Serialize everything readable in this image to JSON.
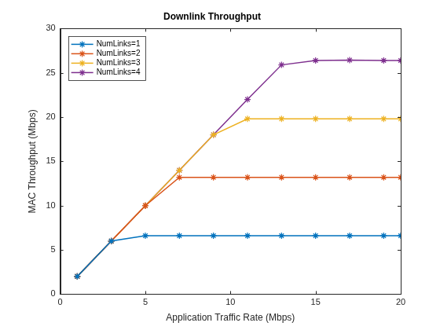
{
  "chart_data": {
    "type": "line",
    "title": "Downlink Throughput",
    "x_label": "Application Traffic Rate (Mbps)",
    "y_label": "MAC Throughput (Mbps)",
    "x": [
      1,
      3,
      5,
      7,
      9,
      11,
      13,
      15,
      17,
      19,
      20
    ],
    "series": [
      {
        "name": "NumLinks=1",
        "color": "#0072bd",
        "marker": "star",
        "line_style": "solid",
        "values": [
          2,
          6,
          6.6,
          6.6,
          6.6,
          6.6,
          6.6,
          6.6,
          6.6,
          6.6,
          6.6
        ]
      },
      {
        "name": "NumLinks=2",
        "color": "#d95319",
        "marker": "star",
        "line_style": "solid",
        "values": [
          2,
          6,
          10,
          13.2,
          13.2,
          13.2,
          13.2,
          13.2,
          13.2,
          13.2,
          13.2
        ]
      },
      {
        "name": "NumLinks=3",
        "color": "#edb120",
        "marker": "star",
        "line_style": "solid",
        "values": [
          2,
          6,
          10,
          14,
          18,
          19.8,
          19.8,
          19.8,
          19.8,
          19.8,
          19.8
        ]
      },
      {
        "name": "NumLinks=4",
        "color": "#7e2f8e",
        "marker": "star",
        "line_style": "solid",
        "values": [
          2,
          6,
          10,
          14,
          18,
          22,
          25.9,
          26.4,
          26.45,
          26.4,
          26.4
        ]
      }
    ],
    "xlim": [
      0,
      20
    ],
    "xticks": [
      0,
      5,
      10,
      15,
      20
    ],
    "ylim": [
      0,
      30
    ],
    "yticks": [
      0,
      5,
      10,
      15,
      20,
      25,
      30
    ],
    "grid": false,
    "legend": "northwest"
  }
}
